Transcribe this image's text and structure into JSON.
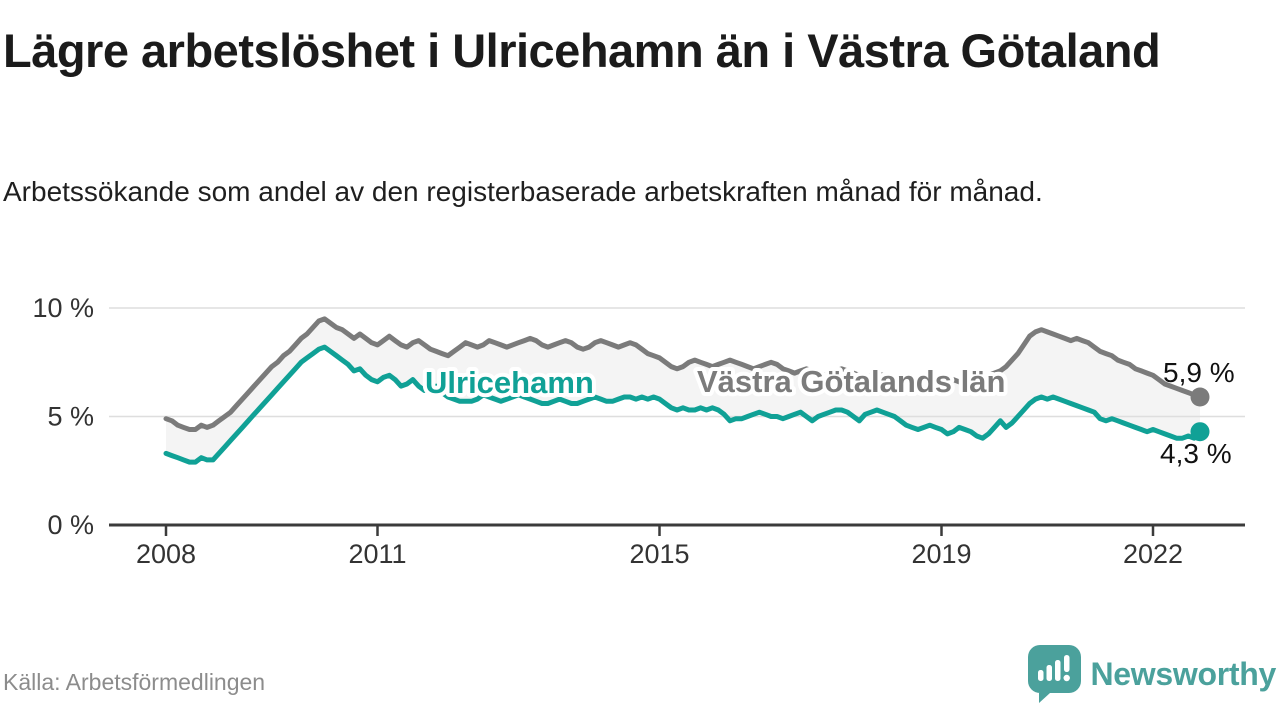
{
  "header": {
    "title": "Lägre arbetslöshet i Ulricehamn än i Västra Götaland",
    "subtitle": "Arbetssökande som andel av den registerbaserade arbetskraften månad för månad."
  },
  "footer": {
    "source": "Källa: Arbetsförmedlingen",
    "brand": "Newsworthy"
  },
  "colors": {
    "teal_line": "#10a196",
    "gray_line": "#7b7b7b",
    "band_fill": "#f4f4f4",
    "gridline": "#dedede",
    "axis": "#3b3b3b",
    "brand_teal": "#4ba19c",
    "label_text": "#111111"
  },
  "chart_data": {
    "type": "line",
    "title": "Lägre arbetslöshet i Ulricehamn än i Västra Götaland",
    "subtitle": "Arbetssökande som andel av den registerbaserade arbetskraften månad för månad.",
    "unit": "%",
    "frequency": "monthly",
    "x_start": "2008-01",
    "x_end": "2022-09",
    "x_start_year": 2008,
    "ylim": [
      0,
      10.8
    ],
    "grid": "horizontal",
    "legend_position": "inline-labels",
    "yticks": [
      {
        "value": 0,
        "label": "0 %"
      },
      {
        "value": 5,
        "label": "5 %"
      },
      {
        "value": 10,
        "label": "10 %"
      }
    ],
    "xticks": [
      {
        "year": 2008,
        "label": "2008"
      },
      {
        "year": 2011,
        "label": "2011"
      },
      {
        "year": 2015,
        "label": "2015"
      },
      {
        "year": 2019,
        "label": "2019"
      },
      {
        "year": 2022,
        "label": "2022"
      }
    ],
    "series": [
      {
        "name": "Västra Götalands län",
        "color": "#7b7b7b",
        "end_label": "5,9 %",
        "end_value": 5.9,
        "values": [
          4.9,
          4.8,
          4.6,
          4.5,
          4.4,
          4.4,
          4.6,
          4.5,
          4.6,
          4.8,
          5.0,
          5.2,
          5.5,
          5.8,
          6.1,
          6.4,
          6.7,
          7.0,
          7.3,
          7.5,
          7.8,
          8.0,
          8.3,
          8.6,
          8.8,
          9.1,
          9.4,
          9.5,
          9.3,
          9.1,
          9.0,
          8.8,
          8.6,
          8.8,
          8.6,
          8.4,
          8.3,
          8.5,
          8.7,
          8.5,
          8.3,
          8.2,
          8.4,
          8.5,
          8.3,
          8.1,
          8.0,
          7.9,
          7.8,
          8.0,
          8.2,
          8.4,
          8.3,
          8.2,
          8.3,
          8.5,
          8.4,
          8.3,
          8.2,
          8.3,
          8.4,
          8.5,
          8.6,
          8.5,
          8.3,
          8.2,
          8.3,
          8.4,
          8.5,
          8.4,
          8.2,
          8.1,
          8.2,
          8.4,
          8.5,
          8.4,
          8.3,
          8.2,
          8.3,
          8.4,
          8.3,
          8.1,
          7.9,
          7.8,
          7.7,
          7.5,
          7.3,
          7.2,
          7.3,
          7.5,
          7.6,
          7.5,
          7.4,
          7.3,
          7.4,
          7.5,
          7.6,
          7.5,
          7.4,
          7.3,
          7.2,
          7.3,
          7.4,
          7.5,
          7.4,
          7.2,
          7.1,
          7.0,
          7.1,
          7.2,
          7.1,
          7.0,
          6.9,
          7.0,
          7.1,
          7.2,
          7.1,
          7.0,
          6.9,
          6.8,
          6.9,
          7.0,
          6.9,
          6.8,
          6.7,
          6.6,
          6.7,
          6.8,
          6.7,
          6.6,
          6.5,
          6.6,
          6.7,
          6.8,
          6.7,
          6.6,
          6.5,
          6.6,
          6.7,
          6.8,
          6.9,
          7.0,
          7.1,
          7.3,
          7.6,
          7.9,
          8.3,
          8.7,
          8.9,
          9.0,
          8.9,
          8.8,
          8.7,
          8.6,
          8.5,
          8.6,
          8.5,
          8.4,
          8.2,
          8.0,
          7.9,
          7.8,
          7.6,
          7.5,
          7.4,
          7.2,
          7.1,
          7.0,
          6.9,
          6.7,
          6.5,
          6.4,
          6.3,
          6.2,
          6.1,
          6.0,
          5.9
        ]
      },
      {
        "name": "Ulricehamn",
        "color": "#10a196",
        "end_label": "4,3 %",
        "end_value": 4.3,
        "values": [
          3.3,
          3.2,
          3.1,
          3.0,
          2.9,
          2.9,
          3.1,
          3.0,
          3.0,
          3.3,
          3.6,
          3.9,
          4.2,
          4.5,
          4.8,
          5.1,
          5.4,
          5.7,
          6.0,
          6.3,
          6.6,
          6.9,
          7.2,
          7.5,
          7.7,
          7.9,
          8.1,
          8.2,
          8.0,
          7.8,
          7.6,
          7.4,
          7.1,
          7.2,
          6.9,
          6.7,
          6.6,
          6.8,
          6.9,
          6.7,
          6.4,
          6.5,
          6.7,
          6.4,
          6.2,
          6.3,
          6.4,
          6.1,
          5.9,
          5.8,
          5.7,
          5.7,
          5.7,
          5.8,
          6.0,
          5.9,
          5.8,
          5.7,
          5.8,
          5.9,
          6.0,
          5.9,
          5.8,
          5.7,
          5.6,
          5.6,
          5.7,
          5.8,
          5.7,
          5.6,
          5.6,
          5.7,
          5.8,
          5.9,
          5.8,
          5.7,
          5.7,
          5.8,
          5.9,
          5.9,
          5.8,
          5.9,
          5.8,
          5.9,
          5.8,
          5.6,
          5.4,
          5.3,
          5.4,
          5.3,
          5.3,
          5.4,
          5.3,
          5.4,
          5.3,
          5.1,
          4.8,
          4.9,
          4.9,
          5.0,
          5.1,
          5.2,
          5.1,
          5.0,
          5.0,
          4.9,
          5.0,
          5.1,
          5.2,
          5.0,
          4.8,
          5.0,
          5.1,
          5.2,
          5.3,
          5.3,
          5.2,
          5.0,
          4.8,
          5.1,
          5.2,
          5.3,
          5.2,
          5.1,
          5.0,
          4.8,
          4.6,
          4.5,
          4.4,
          4.5,
          4.6,
          4.5,
          4.4,
          4.2,
          4.3,
          4.5,
          4.4,
          4.3,
          4.1,
          4.0,
          4.2,
          4.5,
          4.8,
          4.5,
          4.7,
          5.0,
          5.3,
          5.6,
          5.8,
          5.9,
          5.8,
          5.9,
          5.8,
          5.7,
          5.6,
          5.5,
          5.4,
          5.3,
          5.2,
          4.9,
          4.8,
          4.9,
          4.8,
          4.7,
          4.6,
          4.5,
          4.4,
          4.3,
          4.4,
          4.3,
          4.2,
          4.1,
          4.0,
          4.0,
          4.1,
          4.0,
          4.3
        ]
      }
    ]
  }
}
